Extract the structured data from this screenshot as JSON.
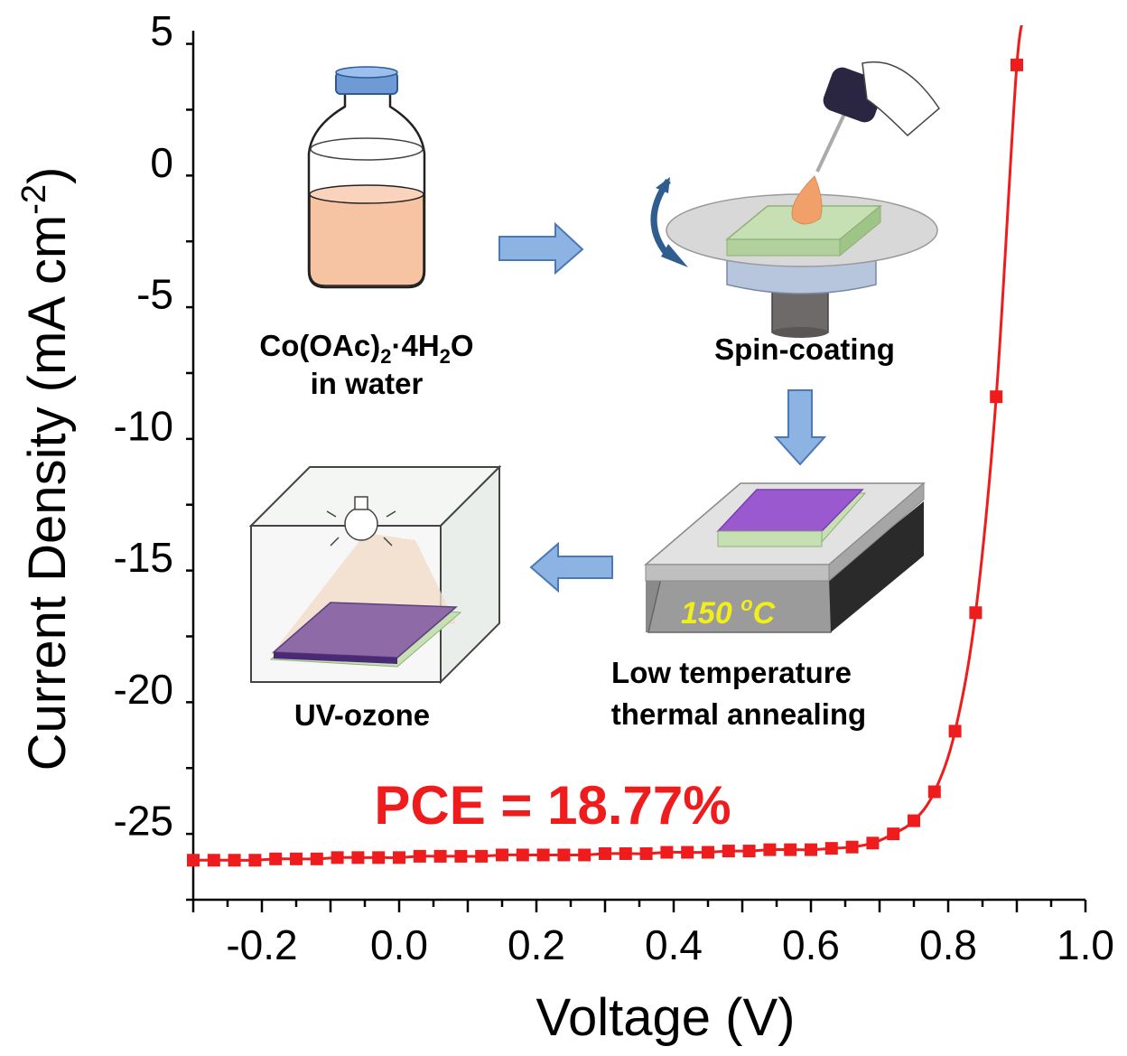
{
  "chart_data": {
    "type": "line",
    "xlabel": "Voltage (V)",
    "ylabel_main": "Current Density (mA cm",
    "ylabel_exp": "-2",
    "ylabel_close": ")",
    "xlim": [
      -0.3,
      1.0
    ],
    "ylim": [
      -28,
      5
    ],
    "xticks": [
      -0.2,
      0.0,
      0.2,
      0.4,
      0.6,
      0.8,
      1.0
    ],
    "xtick_labels": [
      "-0.2",
      "0.0",
      "0.2",
      "0.4",
      "0.6",
      "0.8",
      "1.0"
    ],
    "yticks": [
      5,
      0,
      -5,
      -10,
      -15,
      -20,
      -25
    ],
    "ytick_labels": [
      "5",
      "0",
      "-5",
      "-10",
      "-15",
      "-20",
      "-25"
    ],
    "grid": false,
    "series": [
      {
        "color": "#ee1c1c",
        "marker": "square",
        "x": [
          -0.3,
          -0.27,
          -0.24,
          -0.21,
          -0.18,
          -0.15,
          -0.12,
          -0.09,
          -0.06,
          -0.03,
          0.0,
          0.03,
          0.06,
          0.09,
          0.12,
          0.15,
          0.18,
          0.21,
          0.24,
          0.27,
          0.3,
          0.33,
          0.36,
          0.39,
          0.42,
          0.45,
          0.48,
          0.51,
          0.54,
          0.57,
          0.6,
          0.63,
          0.66,
          0.69,
          0.72,
          0.75,
          0.78,
          0.81,
          0.84,
          0.87,
          0.9
        ],
        "y": [
          -26.5,
          -26.5,
          -26.5,
          -26.5,
          -26.45,
          -26.45,
          -26.45,
          -26.4,
          -26.4,
          -26.4,
          -26.4,
          -26.35,
          -26.35,
          -26.35,
          -26.35,
          -26.3,
          -26.3,
          -26.3,
          -26.3,
          -26.3,
          -26.25,
          -26.25,
          -26.25,
          -26.2,
          -26.2,
          -26.2,
          -26.15,
          -26.15,
          -26.1,
          -26.1,
          -26.1,
          -26.05,
          -26.0,
          -25.85,
          -25.5,
          -25.0,
          -23.9,
          -21.6,
          -17.1,
          -8.9,
          3.7
        ]
      }
    ],
    "annotations": {
      "pce": "PCE = 18.77%"
    }
  },
  "inset": {
    "step1_label_main": "Co(OAc)",
    "step1_label_sub": "2",
    "step1_label_mid": "·4H",
    "step1_label_sub2": "2",
    "step1_label_end": "O",
    "step1_label_line2": "in water",
    "step2_label": "Spin-coating",
    "step3_label_line1": "Low temperature",
    "step3_label_line2": "thermal annealing",
    "step3_temp_main": "150 ",
    "step3_temp_sup": "o",
    "step3_temp_unit": "C",
    "step4_label": "UV-ozone",
    "colors": {
      "arrow_fill": "#8db3e2",
      "arrow_stroke": "#4a78b8",
      "solution": "#f6c3a3",
      "cap": "#6e9bd6",
      "substrate_green": "#c6e0b4",
      "film_purple": "#9b59d0",
      "curve_red": "#ee1c1c"
    }
  }
}
